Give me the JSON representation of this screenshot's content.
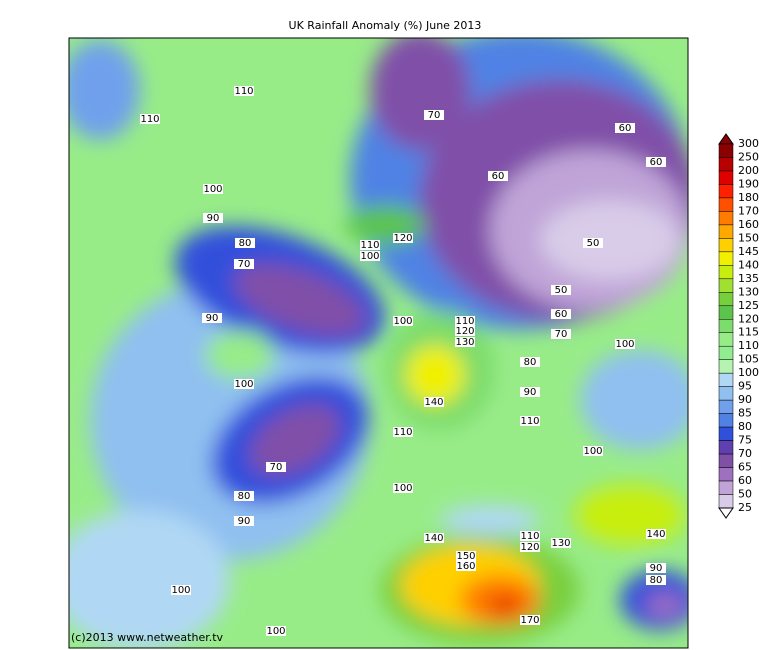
{
  "title": "UK Rainfall Anomaly (%) June 2013",
  "credit": "(c)2013 www.netweather.tv",
  "legend": {
    "levels": [
      300,
      250,
      200,
      190,
      180,
      170,
      160,
      150,
      145,
      140,
      135,
      130,
      125,
      120,
      115,
      110,
      105,
      100,
      95,
      90,
      85,
      80,
      75,
      70,
      65,
      60,
      50,
      25
    ],
    "colors": [
      "#8b0000",
      "#b80000",
      "#e00000",
      "#ff2000",
      "#ff5000",
      "#ff7c00",
      "#ffa800",
      "#ffd000",
      "#f0f000",
      "#c8ee10",
      "#a0e030",
      "#78cf3c",
      "#5cc44c",
      "#7cdc6c",
      "#98ec88",
      "#90ee90",
      "#b4f4b0",
      "#b0d8f4",
      "#90c0f0",
      "#70a0ec",
      "#5082e4",
      "#3050dc",
      "#6040b0",
      "#8050a8",
      "#a070c0",
      "#c0a4d8",
      "#d8cce8",
      "#ffffff"
    ]
  },
  "contour_labels": [
    110,
    110,
    100,
    90,
    80,
    70,
    90,
    100,
    70,
    80,
    90,
    100,
    100,
    70,
    60,
    60,
    60,
    120,
    110,
    100,
    50,
    50,
    60,
    70,
    100,
    110,
    120,
    130,
    100,
    80,
    140,
    90,
    110,
    110,
    100,
    100,
    140,
    140,
    110,
    120,
    130,
    150,
    160,
    90,
    80,
    170
  ]
}
